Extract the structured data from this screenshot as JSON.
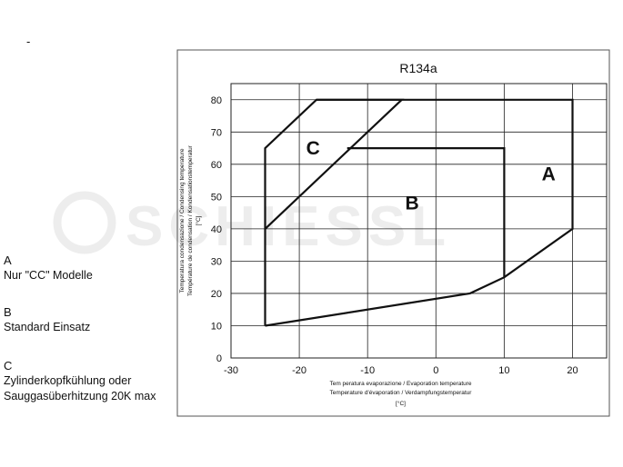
{
  "dash": "-",
  "legend": [
    {
      "key": "A",
      "lines": [
        "Nur \"CC\" Modelle"
      ]
    },
    {
      "key": "B",
      "lines": [
        "Standard Einsatz"
      ]
    },
    {
      "key": "C",
      "lines": [
        "Zylinderkopfkühlung oder",
        "Sauggasüberhitzung 20K max"
      ]
    }
  ],
  "watermark": "SCHIESSL",
  "chart_data": {
    "type": "line",
    "title": "R134a",
    "xlabel": [
      "Tem peratura evaporazione / Evaporation temperature",
      "Temperature d'évaporation / Verdampfungstemperatur",
      "[°C]"
    ],
    "ylabel": [
      "Temperatura condensazione / Condensing temperature",
      "Température de condensation / Kondensationstemperatur",
      "[°C]"
    ],
    "xlim": [
      -30,
      25
    ],
    "ylim": [
      0,
      85
    ],
    "xticks": [
      -30,
      -20,
      -10,
      0,
      10,
      20
    ],
    "yticks": [
      0,
      10,
      20,
      30,
      40,
      50,
      60,
      70,
      80
    ],
    "grid": true,
    "series": [
      {
        "name": "A",
        "label_at": [
          15.5,
          55
        ],
        "x": [
          -25,
          -25,
          -17.5,
          20,
          20,
          10,
          5,
          -25
        ],
        "y": [
          10,
          65,
          80,
          80,
          40,
          25,
          20,
          10
        ]
      },
      {
        "name": "B",
        "label_at": [
          -4.5,
          46
        ],
        "x": [
          -13,
          10,
          10
        ],
        "y": [
          65,
          65,
          25
        ]
      },
      {
        "name": "C",
        "label_at": [
          -19,
          63
        ],
        "x": [
          -25,
          -5,
          -17.5
        ],
        "y": [
          40,
          80,
          80
        ]
      }
    ]
  }
}
